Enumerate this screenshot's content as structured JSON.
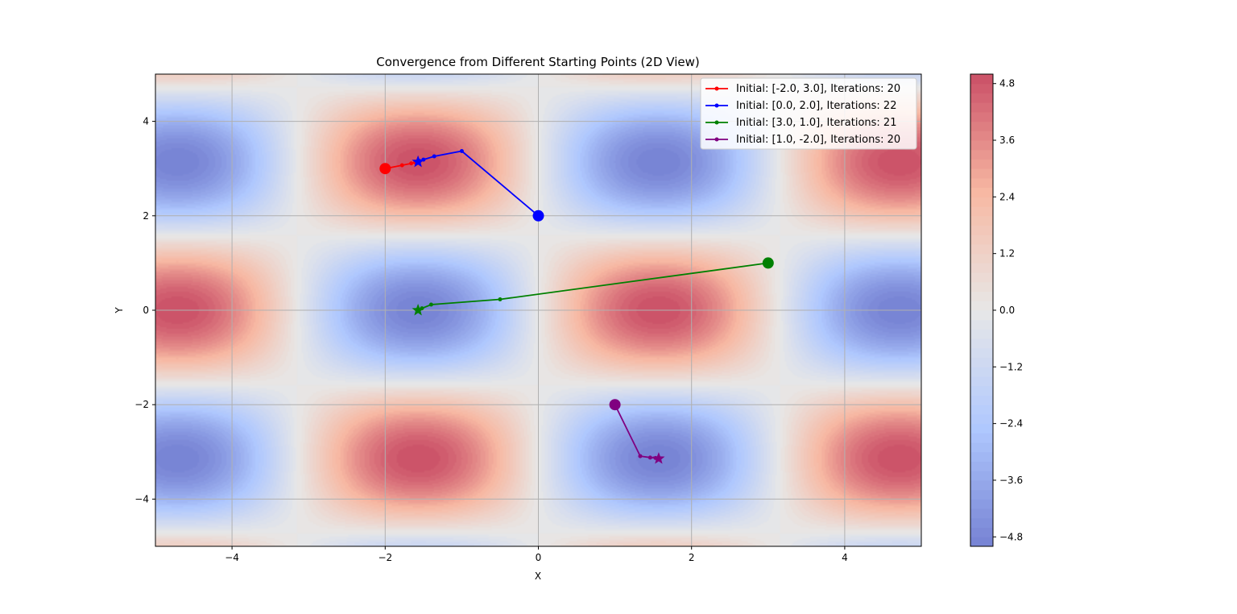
{
  "chart_data": {
    "type": "contour",
    "title": "Convergence from Different Starting Points (2D View)",
    "xlabel": "X",
    "ylabel": "Y",
    "xlim": [
      -5,
      5
    ],
    "ylim": [
      -5,
      5
    ],
    "xticks": [
      -4,
      -2,
      0,
      2,
      4
    ],
    "yticks": [
      -4,
      -2,
      0,
      2,
      4
    ],
    "xtick_labels": [
      "−4",
      "−2",
      "0",
      "2",
      "4"
    ],
    "ytick_labels": [
      "−4",
      "−2",
      "0",
      "2",
      "4"
    ],
    "grid": true,
    "function": "sin(x) * cos(y) * 5",
    "colormap": "coolwarm",
    "colorbar": {
      "min": -5,
      "max": 5,
      "ticks": [
        4.8,
        3.6,
        2.4,
        1.2,
        0.0,
        -1.2,
        -2.4,
        -3.6,
        -4.8
      ],
      "tick_labels": [
        "4.8",
        "3.6",
        "2.4",
        "1.2",
        "0.0",
        "−1.2",
        "−2.4",
        "−3.6",
        "−4.8"
      ]
    },
    "legend_position": "top-right",
    "series": [
      {
        "name": "Initial: [-2.0, 3.0], Iterations: 20",
        "color": "#ff0000",
        "start": [
          -2.0,
          3.0
        ],
        "end": [
          -1.571,
          3.142
        ],
        "points": [
          [
            -2.0,
            3.0
          ],
          [
            -1.78,
            3.07
          ],
          [
            -1.66,
            3.11
          ],
          [
            -1.61,
            3.13
          ],
          [
            -1.585,
            3.138
          ],
          [
            -1.571,
            3.142
          ]
        ]
      },
      {
        "name": "Initial: [0.0, 2.0], Iterations: 22",
        "color": "#0000ff",
        "start": [
          0.0,
          2.0
        ],
        "end": [
          -1.571,
          3.142
        ],
        "points": [
          [
            0.0,
            2.0
          ],
          [
            -1.0,
            3.37
          ],
          [
            -1.36,
            3.26
          ],
          [
            -1.5,
            3.19
          ],
          [
            -1.55,
            3.16
          ],
          [
            -1.571,
            3.142
          ]
        ]
      },
      {
        "name": "Initial: [3.0, 1.0], Iterations: 21",
        "color": "#008000",
        "start": [
          3.0,
          1.0
        ],
        "end": [
          -1.571,
          0.0
        ],
        "points": [
          [
            3.0,
            1.0
          ],
          [
            -0.5,
            0.23
          ],
          [
            -1.4,
            0.12
          ],
          [
            -1.52,
            0.04
          ],
          [
            -1.571,
            0.0
          ]
        ]
      },
      {
        "name": "Initial: [1.0, -2.0], Iterations: 20",
        "color": "#800080",
        "start": [
          1.0,
          -2.0
        ],
        "end": [
          1.571,
          -3.142
        ],
        "points": [
          [
            1.0,
            -2.0
          ],
          [
            1.33,
            -3.09
          ],
          [
            1.46,
            -3.12
          ],
          [
            1.53,
            -3.13
          ],
          [
            1.571,
            -3.142
          ]
        ]
      }
    ]
  }
}
